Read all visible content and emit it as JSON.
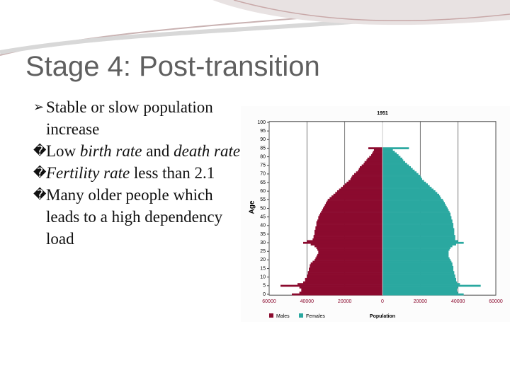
{
  "slide": {
    "title": "Stage 4: Post-transition",
    "bullets": [
      {
        "marker": "➢",
        "runs": [
          {
            "text": "Stable or slow population increase",
            "italic": false
          }
        ]
      },
      {
        "marker": "�",
        "runs": [
          {
            "text": "Low ",
            "italic": false
          },
          {
            "text": "birth rate",
            "italic": true
          },
          {
            "text": " and ",
            "italic": false
          },
          {
            "text": "death rate",
            "italic": true
          }
        ]
      },
      {
        "marker": "�",
        "runs": [
          {
            "text": "Fertility rate",
            "italic": true
          },
          {
            "text": " less than 2.1",
            "italic": false
          }
        ]
      },
      {
        "marker": "�",
        "runs": [
          {
            "text": "Many older people which leads to a high dependency load",
            "italic": false
          }
        ]
      }
    ]
  },
  "chart_data": {
    "type": "pyramid",
    "title": "1951",
    "x_label": "Population",
    "y_label": "Age",
    "y": [
      0,
      1,
      2,
      3,
      4,
      5,
      6,
      7,
      8,
      9,
      10,
      11,
      12,
      13,
      14,
      15,
      16,
      17,
      18,
      19,
      20,
      21,
      22,
      23,
      24,
      25,
      26,
      27,
      28,
      29,
      30,
      31,
      32,
      33,
      34,
      35,
      36,
      37,
      38,
      39,
      40,
      41,
      42,
      43,
      44,
      45,
      46,
      47,
      48,
      49,
      50,
      51,
      52,
      53,
      54,
      55,
      56,
      57,
      58,
      59,
      60,
      61,
      62,
      63,
      64,
      65,
      66,
      67,
      68,
      69,
      70,
      71,
      72,
      73,
      74,
      75,
      76,
      77,
      78,
      79,
      80,
      81,
      82,
      83,
      84,
      85
    ],
    "series": [
      {
        "name": "Males",
        "color": "#8b0a2e",
        "side": "left",
        "values": [
          48000,
          44000,
          43000,
          43000,
          44000,
          54000,
          45000,
          42000,
          41000,
          41000,
          40000,
          40000,
          39500,
          39500,
          39000,
          39000,
          38500,
          38500,
          38000,
          37000,
          36000,
          35500,
          35000,
          34500,
          34000,
          34000,
          34500,
          35000,
          36000,
          38000,
          42000,
          40000,
          37000,
          36500,
          36500,
          36000,
          36000,
          36000,
          35500,
          35500,
          35000,
          35000,
          35000,
          34500,
          34000,
          34000,
          33500,
          33000,
          32500,
          32000,
          31500,
          31000,
          30500,
          30000,
          29500,
          29000,
          28000,
          27000,
          26000,
          25000,
          24000,
          23000,
          22000,
          21000,
          20000,
          19000,
          18000,
          17000,
          16500,
          16000,
          15000,
          14000,
          13000,
          12500,
          12000,
          11000,
          10000,
          9500,
          8500,
          8000,
          7000,
          6000,
          5500,
          5000,
          4500,
          7500
        ]
      },
      {
        "name": "Females",
        "color": "#2aa8a0",
        "side": "right",
        "values": [
          43000,
          40000,
          39500,
          39500,
          40000,
          52000,
          41000,
          39500,
          39000,
          39000,
          38500,
          38500,
          38000,
          38000,
          37500,
          37500,
          37500,
          37000,
          37000,
          36500,
          36000,
          35500,
          35000,
          35000,
          35000,
          35000,
          35500,
          36000,
          37000,
          39000,
          43000,
          40000,
          38500,
          38500,
          38500,
          38000,
          38000,
          38000,
          38000,
          37500,
          37500,
          37500,
          37000,
          37000,
          36500,
          36500,
          36000,
          36000,
          35500,
          35000,
          34500,
          34000,
          33500,
          33000,
          32500,
          32000,
          31000,
          30500,
          30000,
          29000,
          28000,
          27000,
          26000,
          25000,
          24000,
          23000,
          22000,
          21000,
          20500,
          20000,
          19000,
          18000,
          17000,
          16000,
          15000,
          14000,
          13000,
          12000,
          11000,
          10500,
          9500,
          8500,
          7500,
          6500,
          5500,
          14000
        ]
      }
    ],
    "xlim": [
      -60000,
      60000
    ],
    "xticks": [
      {
        "value": -60000,
        "label": "60000"
      },
      {
        "value": -40000,
        "label": "40000"
      },
      {
        "value": -20000,
        "label": "20000"
      },
      0,
      20000,
      40000,
      60000
    ],
    "ylim": [
      0,
      100
    ],
    "yticks": [
      0,
      5,
      10,
      15,
      20,
      25,
      30,
      35,
      40,
      45,
      50,
      55,
      60,
      65,
      70,
      75,
      80,
      85,
      90,
      95,
      100
    ],
    "grid": true
  }
}
